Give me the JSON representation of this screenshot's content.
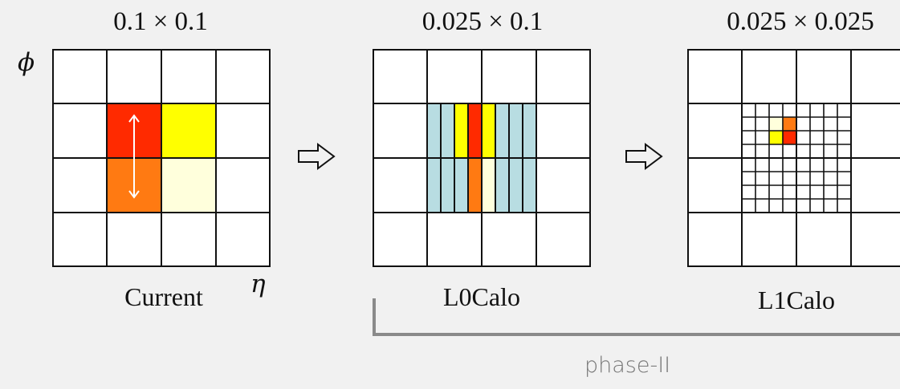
{
  "panels": [
    {
      "title": "0.1 × 0.1",
      "caption": "Current"
    },
    {
      "title": "0.025 × 0.1",
      "caption": "L0Calo"
    },
    {
      "title": "0.025 × 0.025",
      "caption": "L1Calo"
    }
  ],
  "axes": {
    "phi": "ϕ",
    "eta": "η"
  },
  "bracket_label": "phase-II",
  "colors": {
    "red": "#ff2a00",
    "orange": "#ff7a12",
    "yellow": "#ffff00",
    "pale_yellow": "#ffffdc",
    "teal": "#b8dde2",
    "grid_line": "#111111",
    "bracket": "#8a8a8a"
  }
}
